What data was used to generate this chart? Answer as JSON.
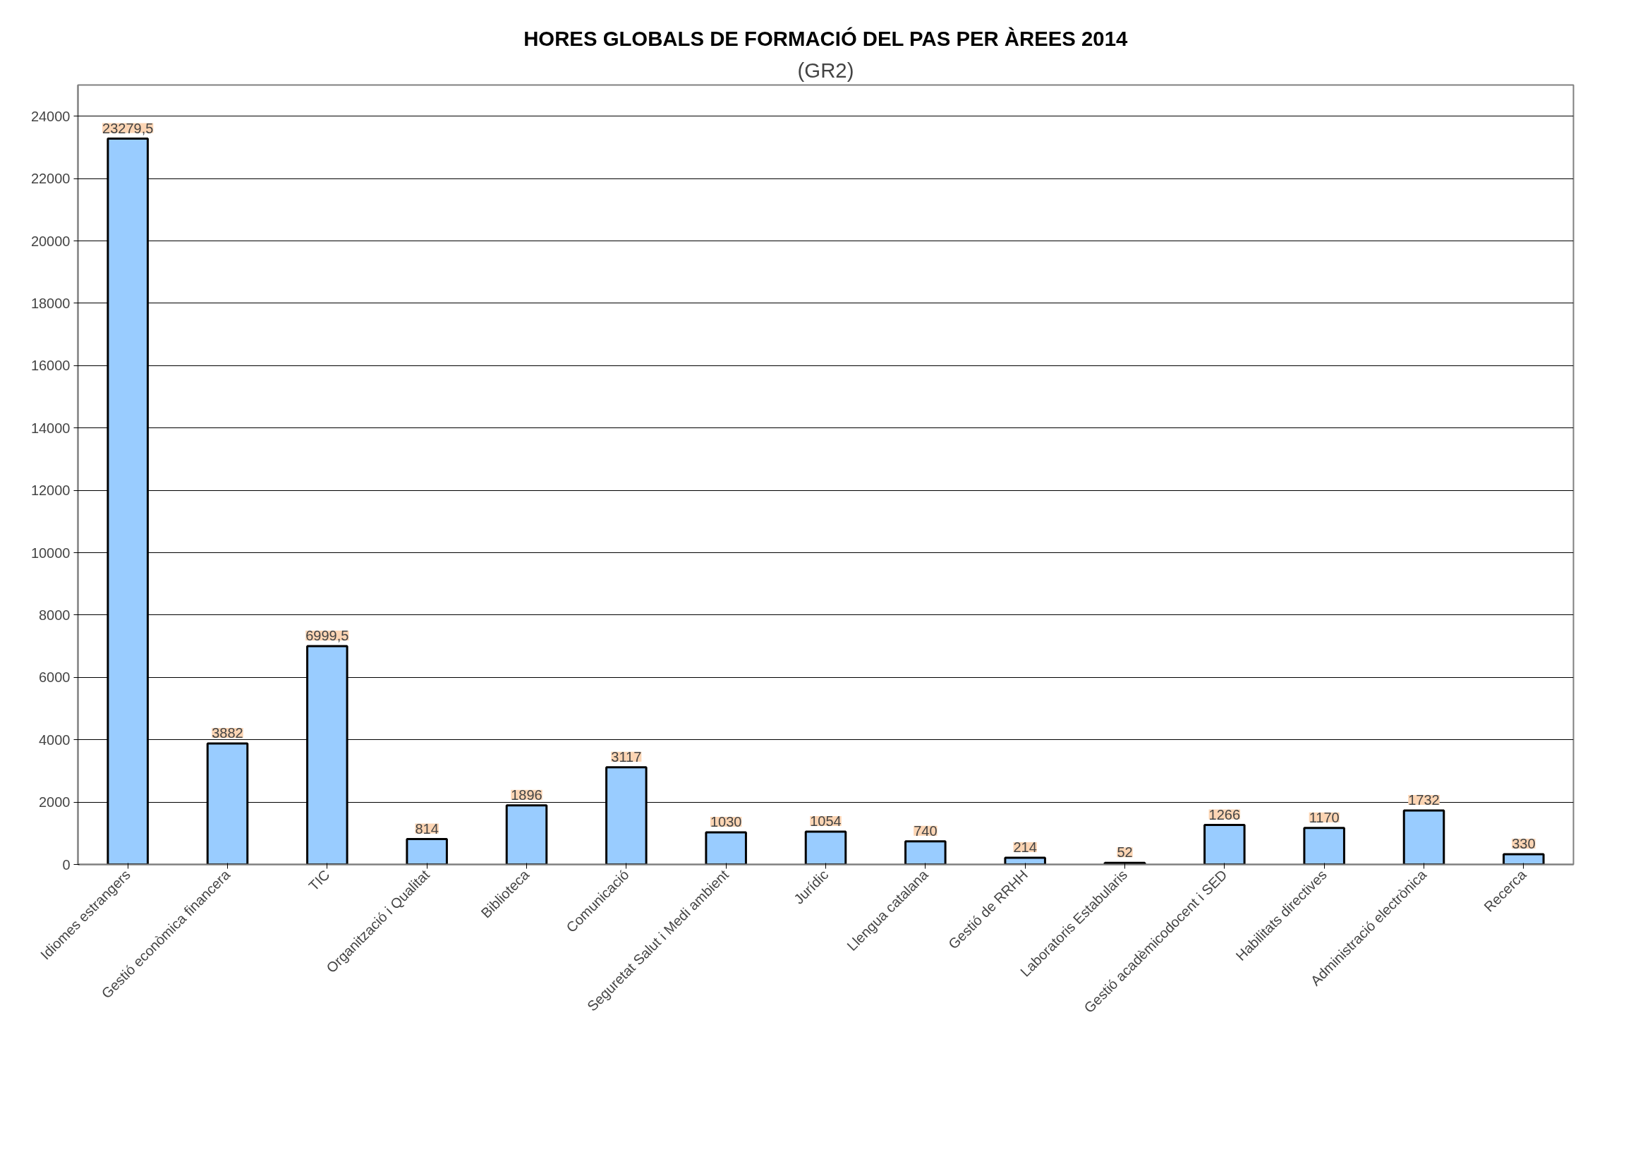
{
  "chart_data": {
    "type": "bar",
    "title": "HORES GLOBALS DE FORMACIÓ DEL PAS PER ÀREES 2014",
    "subtitle": "(GR2)",
    "categories": [
      "Idiomes estrangers",
      "Gestió econòmica financera",
      "TIC",
      "Organització i Qualitat",
      "Biblioteca",
      "Comunicació",
      "Seguretat Salut i Medi ambient",
      "Jurídic",
      "Llengua catalana",
      "Gestió de RRHH",
      "Laboratoris Estabularis",
      "Gestió acadèmicodocent i SED",
      "Habilitats directives",
      "Administració electrònica",
      "Recerca"
    ],
    "values": [
      23279.5,
      3882,
      6999.5,
      814,
      1896,
      3117,
      1030,
      1054,
      740,
      214,
      52,
      1266,
      1170,
      1732,
      330
    ],
    "value_labels": [
      "23279,5",
      "3882",
      "6999,5",
      "814",
      "1896",
      "3117",
      "1030",
      "1054",
      "740",
      "214",
      "52",
      "1266",
      "1170",
      "1732",
      "330"
    ],
    "color": "#99ccff",
    "ylim": [
      0,
      25000
    ],
    "yticks": [
      0,
      2000,
      4000,
      6000,
      8000,
      10000,
      12000,
      14000,
      16000,
      18000,
      20000,
      22000,
      24000
    ],
    "grid": "y"
  }
}
